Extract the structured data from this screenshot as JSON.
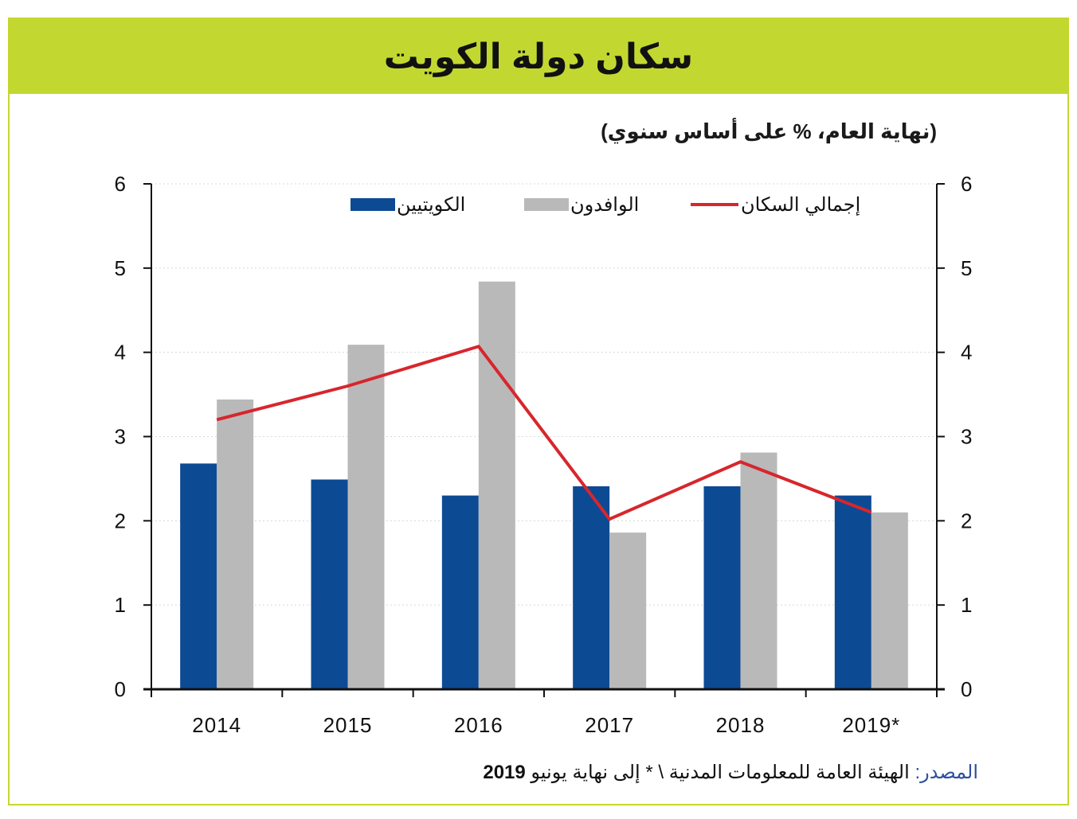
{
  "header": {
    "title": "سكان دولة الكويت"
  },
  "chart_data": {
    "type": "bar",
    "subtitle": "(نهاية العام، % على أساس سنوي)",
    "categories": [
      "2014",
      "2015",
      "2016",
      "2017",
      "2018",
      "2019*"
    ],
    "series": [
      {
        "name": "الكويتيين",
        "kind": "bar",
        "color": "#0d4a94",
        "values": [
          2.68,
          2.49,
          2.3,
          2.41,
          2.41,
          2.3
        ]
      },
      {
        "name": "الوافدون",
        "kind": "bar",
        "color": "#b9b9ba",
        "values": [
          3.44,
          4.09,
          4.84,
          1.86,
          2.81,
          2.1
        ]
      },
      {
        "name": "إجمالي السكان",
        "kind": "line",
        "color": "#d7262c",
        "values": [
          3.2,
          3.6,
          4.07,
          2.02,
          2.7,
          2.1
        ]
      }
    ],
    "ylim": [
      0,
      6
    ],
    "yticks": [
      "0",
      "1",
      "2",
      "3",
      "4",
      "5",
      "6"
    ],
    "legend": "top",
    "grid": true
  },
  "footer": {
    "source_label": "المصدر:",
    "source_text": "الهيئة العامة للمعلومات المدنية \\ * إلى نهاية يونيو",
    "source_year": "2019"
  }
}
